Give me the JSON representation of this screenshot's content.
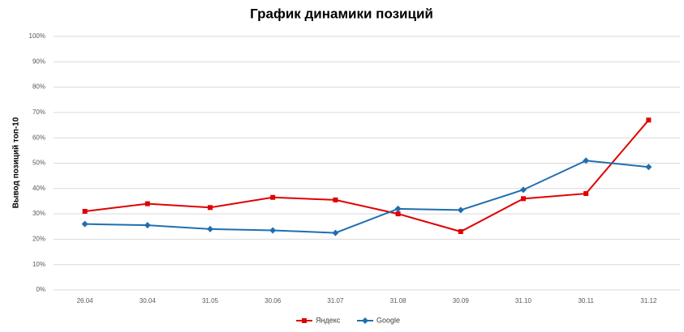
{
  "chart_data": {
    "type": "line",
    "title": "График динамики позиций",
    "y_label": "Вывод позиций топ-10",
    "categories": [
      "26.04",
      "30.04",
      "31.05",
      "30.06",
      "31.07",
      "31.08",
      "30.09",
      "31.10",
      "30.11",
      "31.12"
    ],
    "series": [
      {
        "name": "Яндекс",
        "color": "#e00000",
        "marker": "square",
        "values": [
          31,
          34,
          32.5,
          36.5,
          35.5,
          30,
          23,
          36,
          38,
          67
        ]
      },
      {
        "name": "Google",
        "color": "#1f6fb0",
        "marker": "diamond",
        "values": [
          26,
          25.5,
          24,
          23.5,
          22.5,
          32,
          31.5,
          39.5,
          51,
          48.5
        ]
      }
    ],
    "ylim": [
      0,
      100
    ],
    "yticks": [
      {
        "value": 0,
        "label": "0%"
      },
      {
        "value": 10,
        "label": "10%"
      },
      {
        "value": 20,
        "label": "20%"
      },
      {
        "value": 30,
        "label": "30%"
      },
      {
        "value": 40,
        "label": "40%"
      },
      {
        "value": 50,
        "label": "50%"
      },
      {
        "value": 60,
        "label": "60%"
      },
      {
        "value": 70,
        "label": "70%"
      },
      {
        "value": 80,
        "label": "80%"
      },
      {
        "value": 90,
        "label": "90%"
      },
      {
        "value": 100,
        "label": "100%"
      }
    ],
    "grid": true,
    "legend": "bottom"
  }
}
